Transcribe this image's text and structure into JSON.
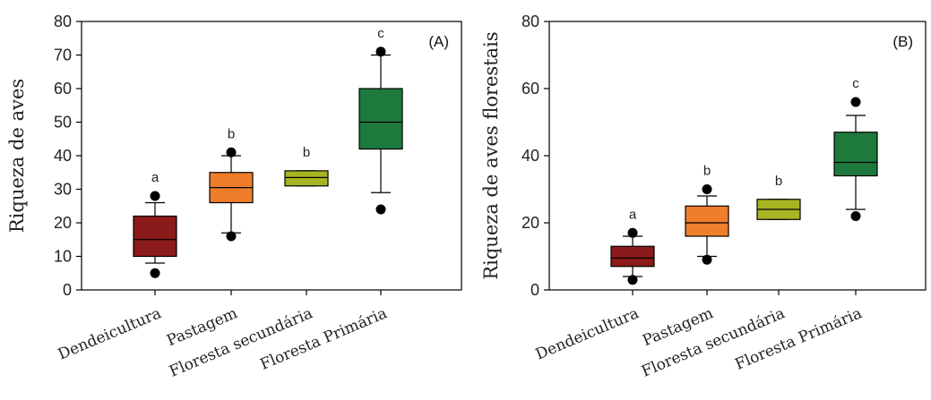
{
  "chart_data": [
    {
      "type": "box",
      "panel_tag": "(A)",
      "title": "",
      "xlabel": "",
      "ylabel": "Riqueza de aves",
      "ylim": [
        0,
        80
      ],
      "yticks": [
        "0",
        "10",
        "20",
        "30",
        "40",
        "50",
        "60",
        "70",
        "80"
      ],
      "grid": false,
      "categories": [
        "Dendeicultura",
        "Pastagem",
        "Floresta secundária",
        "Floresta Primária"
      ],
      "boxes": [
        {
          "letter": "a",
          "color": "#8b1a1a",
          "median_color": "#000000",
          "whisker_low": 8,
          "q1": 10,
          "median": 15,
          "q3": 22,
          "whisker_high": 26,
          "outliers": [
            5,
            28
          ]
        },
        {
          "letter": "b",
          "color": "#f07d2a",
          "median_color": "#000000",
          "whisker_low": 17,
          "q1": 26,
          "median": 30.5,
          "q3": 35,
          "whisker_high": 40,
          "outliers": [
            16,
            41
          ]
        },
        {
          "letter": "b",
          "color": "#a8b422",
          "median_color": "#000000",
          "whisker_low": 31,
          "q1": 31,
          "median": 33.5,
          "q3": 35.5,
          "whisker_high": 35.5,
          "outliers": []
        },
        {
          "letter": "c",
          "color": "#1e7a3c",
          "median_color": "#000000",
          "whisker_low": 29,
          "q1": 42,
          "median": 50,
          "q3": 60,
          "whisker_high": 70,
          "outliers": [
            24,
            71
          ]
        }
      ]
    },
    {
      "type": "box",
      "panel_tag": "(B)",
      "title": "",
      "xlabel": "",
      "ylabel": "Riqueza de aves florestais",
      "ylim": [
        0,
        80
      ],
      "yticks": [
        "0",
        "20",
        "40",
        "60",
        "80"
      ],
      "grid": false,
      "categories": [
        "Dendeicultura",
        "Pastagem",
        "Floresta secundária",
        "Floresta Primária"
      ],
      "boxes": [
        {
          "letter": "a",
          "color": "#8b1a1a",
          "median_color": "#000000",
          "whisker_low": 4,
          "q1": 7,
          "median": 9.5,
          "q3": 13,
          "whisker_high": 16,
          "outliers": [
            3,
            17
          ]
        },
        {
          "letter": "b",
          "color": "#f07d2a",
          "median_color": "#000000",
          "whisker_low": 10,
          "q1": 16,
          "median": 20,
          "q3": 25,
          "whisker_high": 28,
          "outliers": [
            9,
            30
          ]
        },
        {
          "letter": "b",
          "color": "#a8b422",
          "median_color": "#000000",
          "whisker_low": 21,
          "q1": 21,
          "median": 24,
          "q3": 27,
          "whisker_high": 27,
          "outliers": []
        },
        {
          "letter": "c",
          "color": "#1e7a3c",
          "median_color": "#000000",
          "whisker_low": 24,
          "q1": 34,
          "median": 38,
          "q3": 47,
          "whisker_high": 52,
          "outliers": [
            22,
            56
          ]
        }
      ]
    }
  ]
}
